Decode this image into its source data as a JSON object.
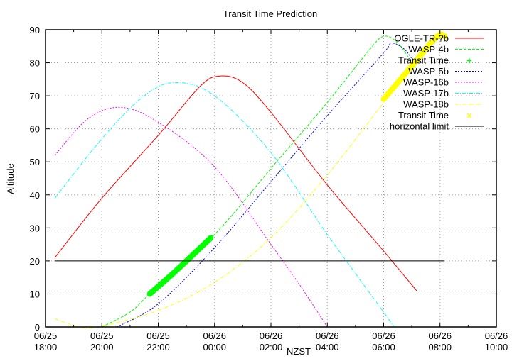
{
  "chart_data": {
    "type": "line",
    "title": "Transit Time Prediction",
    "xlabel": "NZST",
    "ylabel": "Altitude",
    "xlim": [
      "06/25 18:00",
      "06/26 10:00"
    ],
    "ylim": [
      0,
      90
    ],
    "grid": true,
    "legend_position": "top-right",
    "x_ticks": [
      {
        "date": "06/25",
        "time": "18:00"
      },
      {
        "date": "06/25",
        "time": "20:00"
      },
      {
        "date": "06/25",
        "time": "22:00"
      },
      {
        "date": "06/26",
        "time": "00:00"
      },
      {
        "date": "06/26",
        "time": "02:00"
      },
      {
        "date": "06/26",
        "time": "04:00"
      },
      {
        "date": "06/26",
        "time": "06:00"
      },
      {
        "date": "06/26",
        "time": "08:00"
      },
      {
        "date": "06/26",
        "time": "10:00"
      }
    ],
    "y_ticks": [
      "0",
      "10",
      "20",
      "30",
      "40",
      "50",
      "60",
      "70",
      "80",
      "90"
    ],
    "series": [
      {
        "name": "OGLE-TR-?b",
        "color": "#ff0000",
        "style": "solid",
        "points": [
          [
            "06/25 18:20",
            21
          ],
          [
            "06/25 20:00",
            39
          ],
          [
            "06/25 22:00",
            58
          ],
          [
            "06/25 23:30",
            73
          ],
          [
            "06/26 00:13",
            76
          ],
          [
            "06/26 01:00",
            74
          ],
          [
            "06/26 02:00",
            65
          ],
          [
            "06/26 04:00",
            43
          ],
          [
            "06/26 06:00",
            23
          ],
          [
            "06/26 07:10",
            11
          ]
        ]
      },
      {
        "name": "WASP-4b",
        "color": "#00ff00",
        "style": "dashed",
        "points": [
          [
            "06/25 20:00",
            0
          ],
          [
            "06/25 21:00",
            4.5
          ],
          [
            "06/25 21:42",
            10
          ],
          [
            "06/26 00:00",
            28
          ],
          [
            "06/26 02:00",
            48
          ],
          [
            "06/26 04:00",
            68
          ],
          [
            "06/26 05:30",
            84
          ],
          [
            "06/26 06:00",
            88
          ],
          [
            "06/26 06:30",
            86
          ],
          [
            "06/26 07:10",
            78
          ]
        ]
      },
      {
        "name": "Transit Time",
        "color": "#00ff00",
        "style": "thick",
        "points": [
          [
            "06/25 21:42",
            10
          ],
          [
            "06/25 22:30",
            16
          ],
          [
            "06/25 23:15",
            22
          ],
          [
            "06/25 23:52",
            27
          ]
        ]
      },
      {
        "name": "WASP-5b",
        "color": "#0000ff",
        "style": "dotted",
        "points": [
          [
            "06/25 20:32",
            0
          ],
          [
            "06/25 22:00",
            7
          ],
          [
            "06/26 00:00",
            24
          ],
          [
            "06/26 02:00",
            44
          ],
          [
            "06/26 04:00",
            64
          ],
          [
            "06/26 06:00",
            83
          ],
          [
            "06/26 06:15",
            86
          ],
          [
            "06/26 06:45",
            84
          ],
          [
            "06/26 07:10",
            79
          ]
        ]
      },
      {
        "name": "WASP-16b",
        "color": "#ff00ff",
        "style": "dotted",
        "points": [
          [
            "06/25 18:20",
            52
          ],
          [
            "06/25 19:30",
            63
          ],
          [
            "06/25 20:40",
            66.5
          ],
          [
            "06/25 22:00",
            62
          ],
          [
            "06/26 00:00",
            48.5
          ],
          [
            "06/26 02:00",
            25
          ],
          [
            "06/26 03:00",
            13
          ],
          [
            "06/26 04:00",
            0
          ]
        ]
      },
      {
        "name": "WASP-17b",
        "color": "#00ffff",
        "style": "dashdot",
        "points": [
          [
            "06/25 18:20",
            39
          ],
          [
            "06/25 20:00",
            57
          ],
          [
            "06/25 21:30",
            70
          ],
          [
            "06/25 22:37",
            74
          ],
          [
            "06/26 00:00",
            70
          ],
          [
            "06/26 02:00",
            52.8
          ],
          [
            "06/26 04:00",
            28
          ],
          [
            "06/26 06:00",
            4.5
          ],
          [
            "06/26 06:22",
            0
          ]
        ]
      },
      {
        "name": "WASP-18b",
        "color": "#ffff00",
        "style": "dashdot",
        "points": [
          [
            "06/25 18:20",
            2.5
          ],
          [
            "06/25 19:12",
            0
          ],
          [
            "06/25 20:00",
            0.3
          ],
          [
            "06/25 22:00",
            5
          ],
          [
            "06/26 00:00",
            13.5
          ],
          [
            "06/26 02:00",
            27
          ],
          [
            "06/26 04:00",
            46
          ],
          [
            "06/26 06:00",
            68
          ]
        ]
      },
      {
        "name": "Transit Time",
        "color": "#ffff00",
        "style": "thick",
        "points": [
          [
            "06/26 06:00",
            69
          ],
          [
            "06/26 07:00",
            79
          ],
          [
            "06/26 07:40",
            86
          ],
          [
            "06/26 08:00",
            88.5
          ],
          [
            "06/26 08:10",
            88
          ]
        ]
      },
      {
        "name": "horizontal limit",
        "color": "#000000",
        "style": "solid",
        "points": [
          [
            "06/25 18:20",
            20
          ],
          [
            "06/26 08:10",
            20
          ]
        ]
      }
    ]
  }
}
